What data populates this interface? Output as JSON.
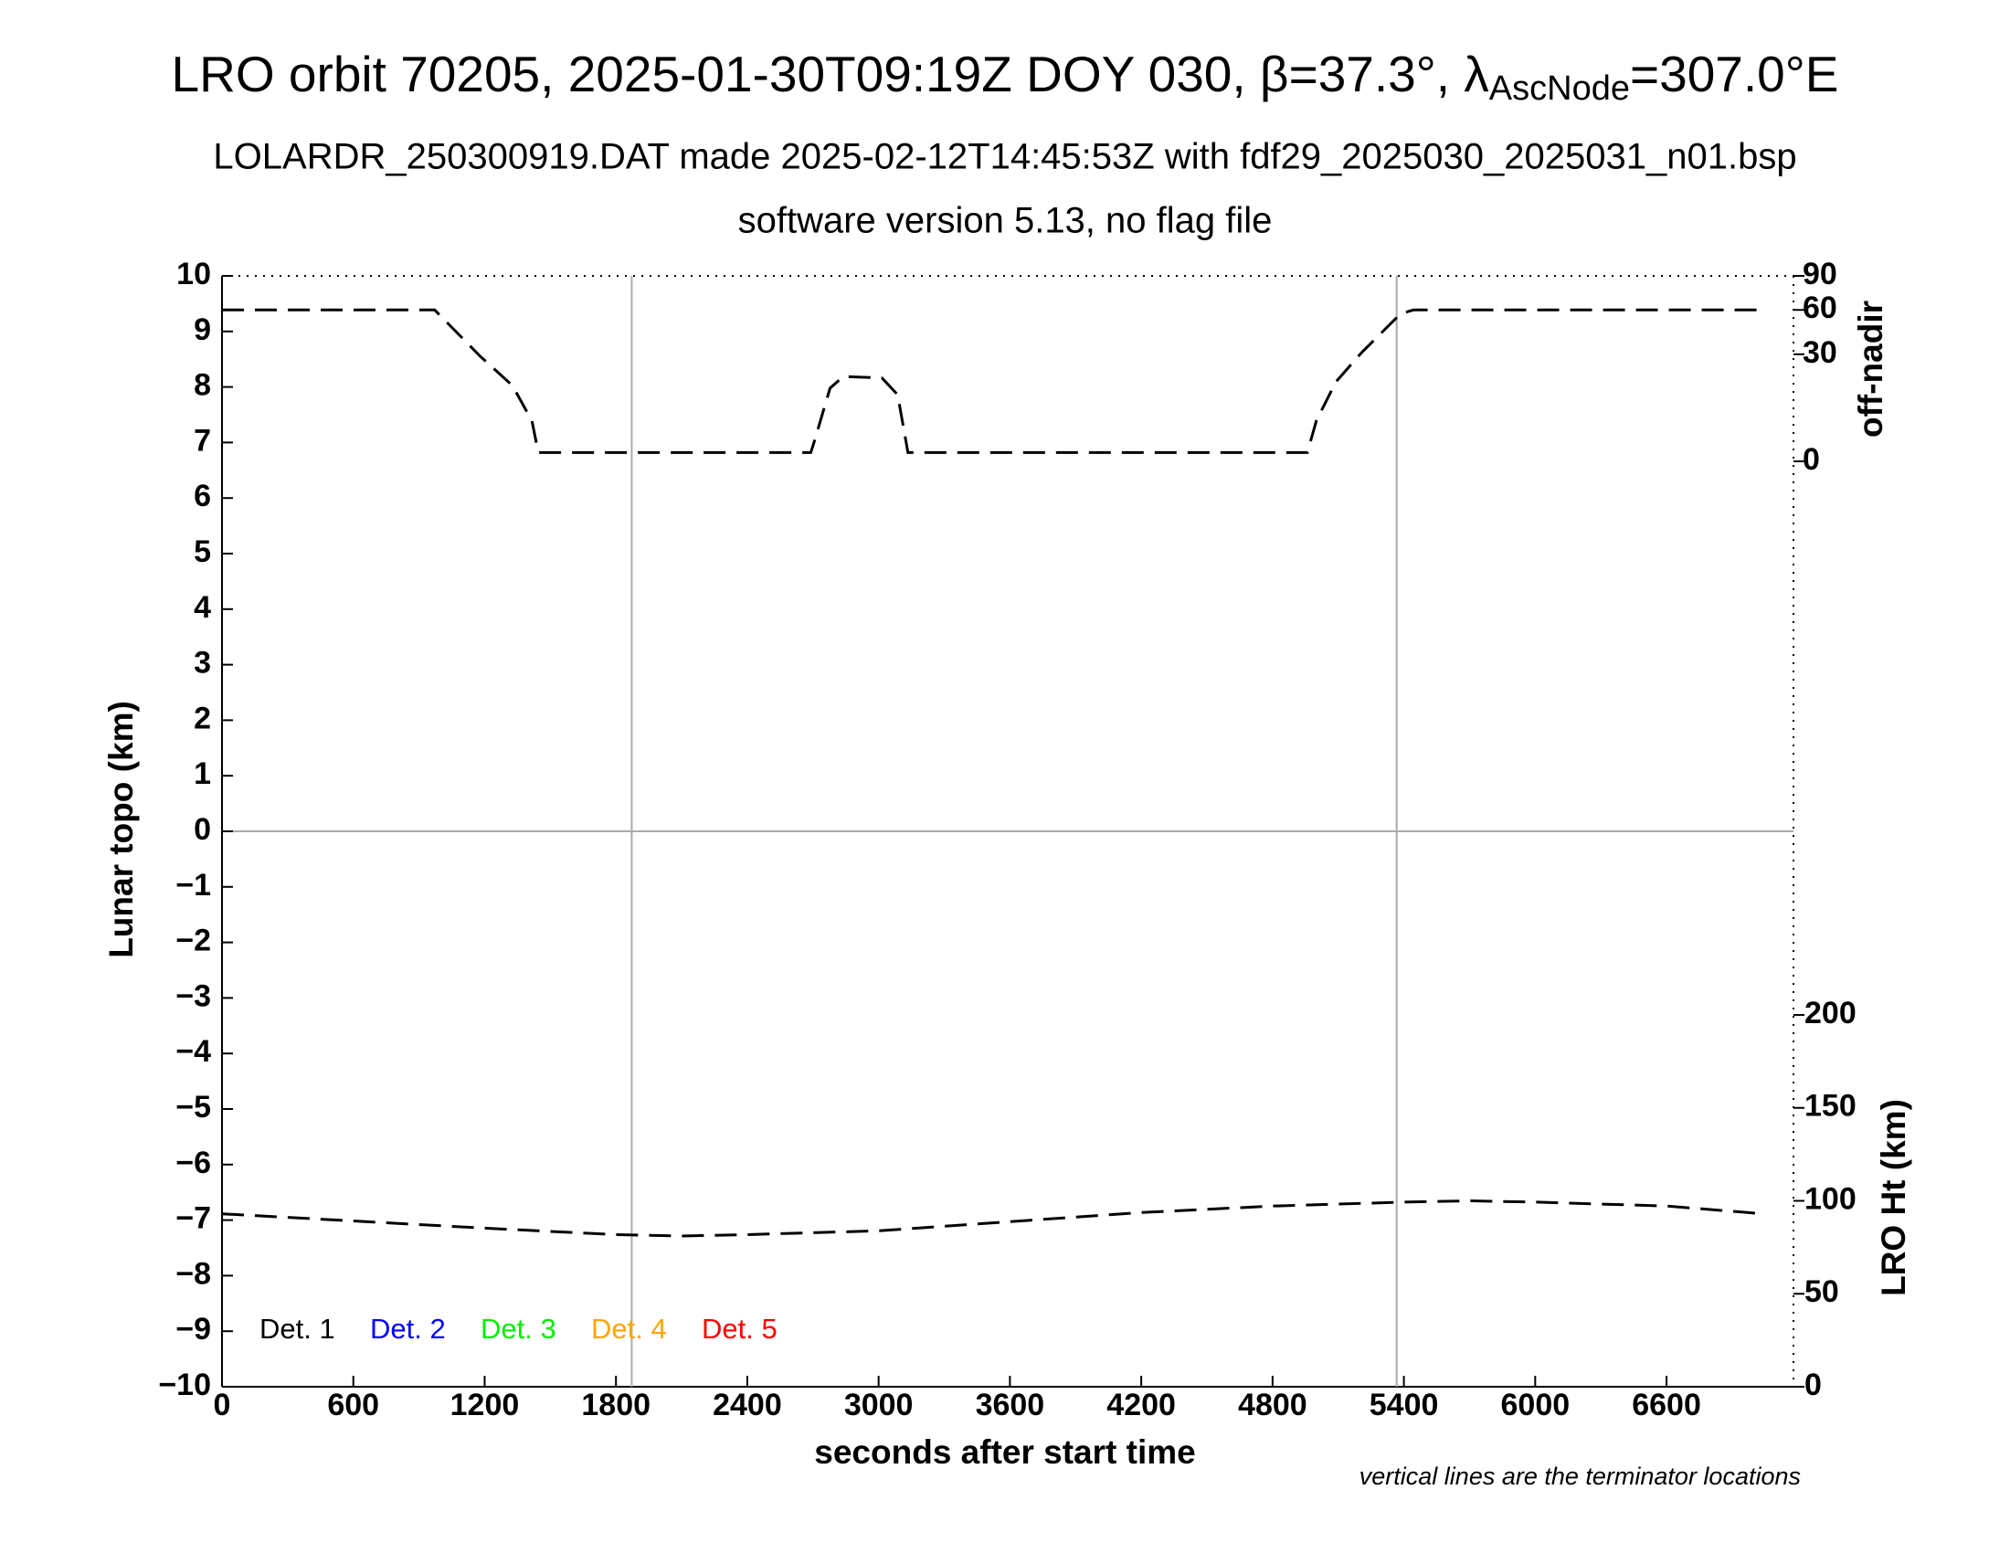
{
  "chart_data": {
    "type": "line",
    "title_parts": [
      "LRO orbit 70205, 2025-01-30T09:19Z DOY 030, β=37.3°, λ",
      "AscNode",
      "=307.0°E"
    ],
    "subtitle": "LOLARDR_250300919.DAT made 2025-02-12T14:45:53Z with fdf29_2025030_2025031_n01.bsp",
    "subtitle2": "software version 5.13, no flag file",
    "xlabel": "seconds after start time",
    "ylabel": "Lunar topo (km)",
    "y2label": "off-nadir",
    "y3label": "LRO Ht (km)",
    "footnote": "vertical lines are the terminator locations",
    "xlim": [
      0,
      7180
    ],
    "xticks": [
      0,
      600,
      1200,
      1800,
      2400,
      3000,
      3600,
      4200,
      4800,
      5400,
      6000,
      6600
    ],
    "ylim": [
      -10,
      10
    ],
    "yticks": [
      {
        "value": -10,
        "label": "−10"
      },
      {
        "value": -9,
        "label": "−9"
      },
      {
        "value": -8,
        "label": "−8"
      },
      {
        "value": -7,
        "label": "−7"
      },
      {
        "value": -6,
        "label": "−6"
      },
      {
        "value": -5,
        "label": "−5"
      },
      {
        "value": -4,
        "label": "−4"
      },
      {
        "value": -3,
        "label": "−3"
      },
      {
        "value": -2,
        "label": "−2"
      },
      {
        "value": -1,
        "label": "−1"
      },
      0,
      1,
      2,
      3,
      4,
      5,
      6,
      7,
      8,
      9,
      10
    ],
    "y2lim": [
      0,
      90
    ],
    "y2scale": "sqrt",
    "y2ticks": [
      0,
      30,
      60,
      90
    ],
    "y3lim": [
      0,
      200
    ],
    "y3ticks": [
      0,
      50,
      100,
      150,
      200
    ],
    "vlines": [
      1872,
      5367
    ],
    "hlines": [
      0
    ],
    "series": [
      {
        "axis": "y2",
        "color": "#000000",
        "x": [
          0,
          972,
          1179,
          1327,
          1416,
          1445,
          2690,
          2707,
          2778,
          2838,
          3015,
          3087,
          3134,
          4959,
          5000,
          5089,
          5207,
          5385,
          5444,
          7044
        ],
        "values": [
          60,
          60,
          29,
          15,
          4.3,
          0.2,
          0.2,
          1.1,
          14,
          18.8,
          18.2,
          11.6,
          0.2,
          0.2,
          4.3,
          16.5,
          31,
          57,
          60,
          60
        ]
      },
      {
        "axis": "y3",
        "color": "#000000",
        "x": [
          0,
          1200,
          1800,
          2100,
          2400,
          3000,
          3600,
          4200,
          4800,
          5400,
          5700,
          6000,
          6600,
          7044
        ],
        "values": [
          93,
          85.3,
          81.8,
          81.1,
          81.8,
          83.9,
          88.8,
          93.7,
          97.2,
          99.3,
          100,
          99.3,
          97.2,
          93
        ]
      }
    ],
    "legend": [
      {
        "name": "Det. 1",
        "color": "#000000"
      },
      {
        "name": "Det. 2",
        "color": "#0000ff"
      },
      {
        "name": "Det. 3",
        "color": "#00ee00"
      },
      {
        "name": "Det. 4",
        "color": "#ffa500"
      },
      {
        "name": "Det. 5",
        "color": "#ff0000"
      }
    ]
  }
}
